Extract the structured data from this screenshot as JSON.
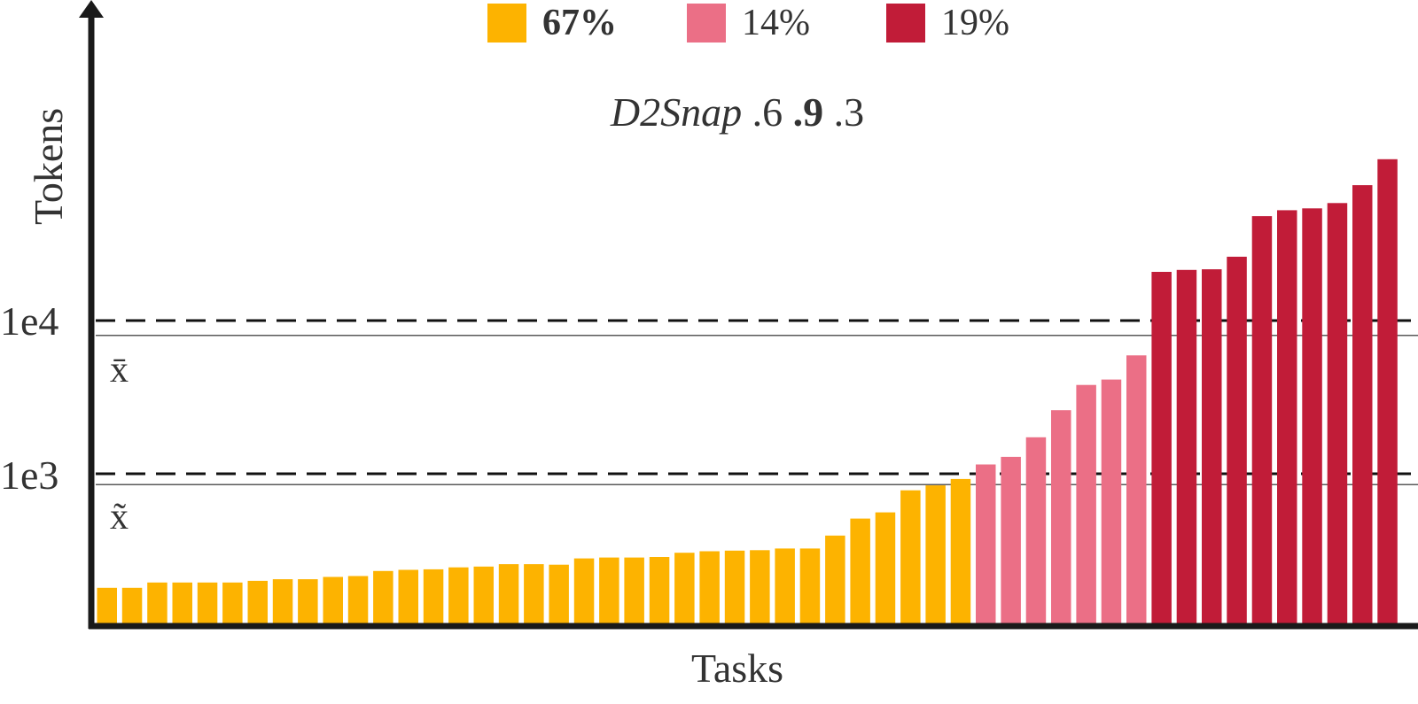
{
  "chart_data": {
    "type": "bar",
    "title": "",
    "subtitle": {
      "method": "D2Snap",
      "params": [
        ".6",
        ".9",
        ".3"
      ],
      "bold_index": 1
    },
    "xlabel": "Tasks",
    "ylabel": "Tokens",
    "yscale": "log",
    "ylim": [
      150,
      100000
    ],
    "yticks": [
      {
        "value": 1000,
        "label": "1e3"
      },
      {
        "value": 10000,
        "label": "1e4"
      }
    ],
    "reference_lines": [
      {
        "name": "mean",
        "symbol": "x̄",
        "value": 8000,
        "style": "solid"
      },
      {
        "name": "median",
        "symbol": "x̃",
        "value": 850,
        "style": "solid"
      }
    ],
    "threshold_lines": [
      {
        "value": 1000,
        "style": "dashed"
      },
      {
        "value": 10000,
        "style": "dashed"
      }
    ],
    "legend": [
      {
        "label": "67%",
        "color": "#FDB300",
        "bold": true
      },
      {
        "label": "14%",
        "color": "#EB6F86",
        "bold": false
      },
      {
        "label": "19%",
        "color": "#C11C38",
        "bold": false
      }
    ],
    "groups": [
      {
        "color": "#FDB300",
        "values": [
          180,
          180,
          195,
          195,
          195,
          195,
          200,
          205,
          205,
          212,
          215,
          232,
          236,
          238,
          245,
          248,
          257,
          257,
          255,
          280,
          284,
          284,
          286,
          305,
          312,
          315,
          317,
          325,
          325,
          395,
          510,
          560,
          780,
          840,
          925
        ]
      },
      {
        "color": "#EB6F86",
        "values": [
          1150,
          1290,
          1730,
          2600,
          3800,
          4120,
          5930
        ]
      },
      {
        "color": "#C11C38",
        "values": [
          20800,
          21400,
          21600,
          26100,
          48000,
          52500,
          54000,
          58500,
          76500,
          113000
        ]
      }
    ]
  }
}
